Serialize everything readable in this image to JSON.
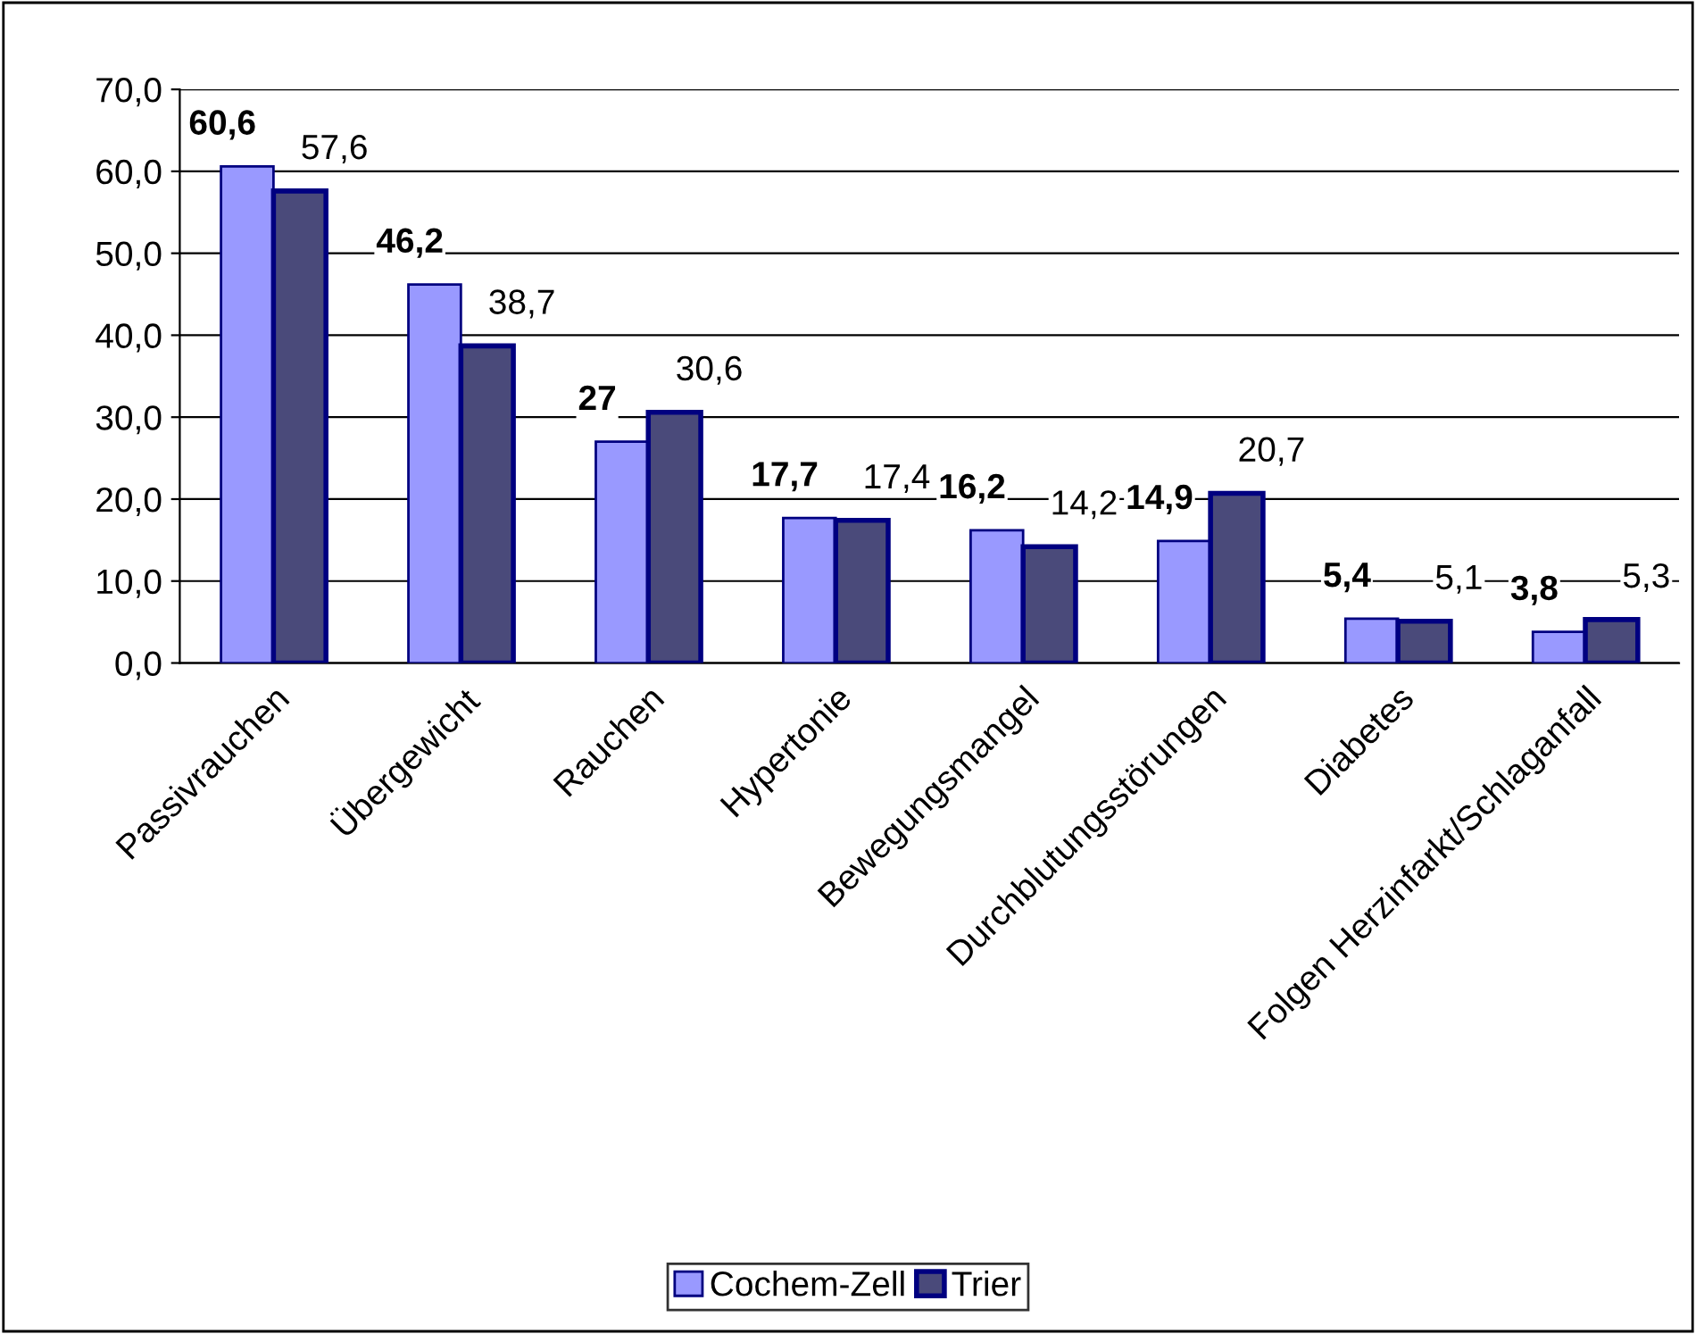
{
  "chart_data": {
    "type": "bar",
    "categories": [
      "Passivrauchen",
      "Übergewicht",
      "Rauchen",
      "Hypertonie",
      "Bewegungsmangel",
      "Durchblutungsstörungen",
      "Diabetes",
      "Folgen Herzinfarkt/Schlaganfall"
    ],
    "series": [
      {
        "name": "Cochem-Zell",
        "color": "#9999ff",
        "values": [
          60.6,
          46.2,
          27,
          17.7,
          16.2,
          14.9,
          5.4,
          3.8
        ],
        "value_labels": [
          "60,6",
          "46,2",
          "27",
          "17,7",
          "16,2",
          "14,9",
          "5,4",
          "3,8"
        ]
      },
      {
        "name": "Trier",
        "color": "#4a4a7a",
        "values": [
          57.6,
          38.7,
          30.6,
          17.4,
          14.2,
          20.7,
          5.1,
          5.3
        ],
        "value_labels": [
          "57,6",
          "38,7",
          "30,6",
          "17,4",
          "14,2",
          "20,7",
          "5,1",
          "5,3"
        ]
      }
    ],
    "ylim": [
      0,
      70
    ],
    "yticks": [
      {
        "value": 0,
        "label": "0,0"
      },
      {
        "value": 10,
        "label": "10,0"
      },
      {
        "value": 20,
        "label": "20,0"
      },
      {
        "value": 30,
        "label": "30,0"
      },
      {
        "value": 40,
        "label": "40,0"
      },
      {
        "value": 50,
        "label": "50,0"
      },
      {
        "value": 60,
        "label": "60,0"
      },
      {
        "value": 70,
        "label": "70,0"
      }
    ],
    "grid": "y",
    "legend": "bottom"
  }
}
